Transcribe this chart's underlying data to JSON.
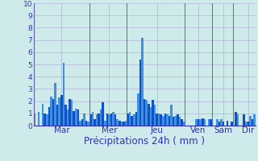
{
  "xlabel": "Précipitations 24h ( mm )",
  "ylim": [
    0,
    10
  ],
  "yticks": [
    0,
    1,
    2,
    3,
    4,
    5,
    6,
    7,
    8,
    9,
    10
  ],
  "background_color": "#ceeaea",
  "grid_color": "#aaaacc",
  "bar_color_dark": "#1050c8",
  "bar_color_light": "#4090e0",
  "day_labels": [
    "Mar",
    "Mer",
    "Jeu",
    "Ven",
    "Sam",
    "Dir"
  ],
  "values": [
    1.0,
    0.0,
    1.1,
    0.0,
    1.8,
    1.0,
    0.9,
    1.5,
    2.4,
    2.2,
    3.5,
    1.7,
    2.3,
    2.5,
    5.1,
    1.7,
    1.3,
    2.2,
    2.1,
    1.2,
    1.4,
    1.3,
    0.4,
    0.5,
    1.0,
    0.4,
    0.3,
    0.9,
    1.1,
    0.5,
    0.9,
    1.0,
    1.3,
    1.9,
    0.4,
    1.0,
    0.9,
    1.0,
    1.1,
    0.9,
    0.5,
    0.4,
    0.3,
    0.3,
    0.4,
    1.0,
    1.1,
    0.8,
    0.9,
    1.1,
    2.6,
    5.4,
    7.2,
    2.2,
    2.1,
    1.8,
    1.5,
    2.1,
    1.7,
    1.0,
    1.0,
    0.9,
    0.8,
    1.0,
    0.9,
    0.8,
    1.7,
    0.7,
    0.8,
    0.9,
    0.7,
    0.5,
    0.3,
    0.0,
    0.0,
    0.0,
    0.0,
    0.0,
    0.5,
    0.5,
    0.5,
    0.6,
    0.5,
    0.0,
    0.5,
    0.5,
    0.0,
    0.0,
    0.5,
    0.3,
    0.5,
    0.3,
    0.0,
    0.4,
    0.0,
    0.3,
    0.0,
    1.1,
    0.9,
    0.0,
    0.0,
    0.9,
    0.3,
    0.3,
    0.8,
    0.5,
    0.9
  ],
  "xlabel_fontsize": 8.5,
  "ytick_fontsize": 6.5,
  "xtick_fontsize": 7.5,
  "vline_color": "#6666aa",
  "spine_color": "#3333aa"
}
